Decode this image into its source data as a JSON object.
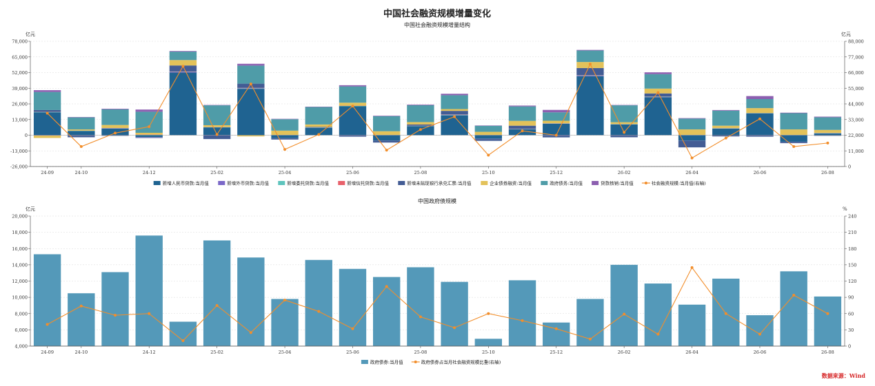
{
  "page": {
    "title": "中国社会融资规模增量变化",
    "source": "数据来源：Wind"
  },
  "chart_data": [
    {
      "type": "bar",
      "stacked": true,
      "title": "中国社会融资规模增量结构",
      "y_left_unit": "亿元",
      "y_right_unit": "亿元",
      "ylim_left": [
        -26000,
        78000
      ],
      "ylim_right": [
        0,
        88000
      ],
      "left_ticks": [
        "-26,000",
        "-13,000",
        "0",
        "13,000",
        "26,000",
        "39,000",
        "52,000",
        "65,000",
        "78,000"
      ],
      "right_ticks": [
        "0",
        "11,000",
        "22,000",
        "33,000",
        "44,000",
        "55,000",
        "66,000",
        "77,000",
        "88,000"
      ],
      "left_tick_values": [
        -26000,
        -13000,
        0,
        13000,
        26000,
        39000,
        52000,
        65000,
        78000
      ],
      "right_tick_values": [
        0,
        11000,
        22000,
        33000,
        44000,
        55000,
        66000,
        77000,
        88000
      ],
      "grid": true,
      "legend_position": "bottom",
      "categories": [
        "24-09",
        "24-10",
        "24-11",
        "24-12",
        "25-01",
        "25-02",
        "25-03",
        "25-04",
        "25-05",
        "25-06",
        "25-07",
        "25-08",
        "25-09",
        "25-10",
        "25-11",
        "25-12",
        "26-01",
        "26-02",
        "26-03",
        "26-04",
        "26-05",
        "26-06",
        "26-07",
        "26-08"
      ],
      "x_tick_labels": [
        "24-09",
        "24-10",
        "",
        "24-12",
        "",
        "25-02",
        "",
        "25-04",
        "",
        "25-06",
        "",
        "25-08",
        "",
        "25-10",
        "",
        "25-12",
        "",
        "26-02",
        "",
        "26-04",
        "",
        "26-06",
        "",
        "26-08"
      ],
      "series": [
        {
          "name": "新增人民币贷款:当月值",
          "color": "#1f6391",
          "values": [
            19000,
            3500,
            5500,
            -1500,
            52000,
            6500,
            38500,
            -2500,
            6000,
            24000,
            -4500,
            7500,
            16500,
            -3000,
            5000,
            9500,
            49000,
            9000,
            31500,
            -4500,
            5500,
            18000,
            -5500,
            1500
          ]
        },
        {
          "name": "新增外币贷款:当月值",
          "color": "#7b68c8",
          "values": [
            -300,
            -200,
            200,
            -300,
            500,
            -200,
            300,
            -100,
            100,
            -200,
            -100,
            100,
            200,
            -200,
            100,
            -300,
            400,
            -200,
            200,
            -100,
            100,
            -200,
            -100,
            100
          ]
        },
        {
          "name": "新增委托贷款:当月值",
          "color": "#5ec4bd",
          "values": [
            300,
            200,
            200,
            300,
            200,
            200,
            300,
            200,
            200,
            300,
            200,
            200,
            300,
            200,
            200,
            300,
            200,
            200,
            300,
            200,
            200,
            300,
            200,
            200
          ]
        },
        {
          "name": "新增信托贷款:当月值",
          "color": "#e8616b",
          "values": [
            100,
            100,
            100,
            200,
            200,
            100,
            200,
            100,
            100,
            200,
            100,
            100,
            200,
            100,
            100,
            200,
            200,
            100,
            200,
            100,
            100,
            200,
            100,
            100
          ]
        },
        {
          "name": "新增未贴现银行承兑汇票:当月值",
          "color": "#435c94",
          "values": [
            1500,
            -1500,
            -500,
            -500,
            5000,
            -3000,
            3500,
            -1000,
            500,
            -1000,
            -1500,
            1000,
            3000,
            -1500,
            2500,
            -1500,
            6000,
            -1500,
            2500,
            -5500,
            -1000,
            -1000,
            -1000,
            -500
          ]
        },
        {
          "name": "企业债券融资:当月值",
          "color": "#e3c25a",
          "values": [
            -2000,
            1000,
            2500,
            1500,
            4500,
            1500,
            -1000,
            3500,
            2000,
            2500,
            3000,
            2000,
            1500,
            2500,
            4000,
            2000,
            5000,
            1500,
            4000,
            4500,
            2000,
            4000,
            4500,
            2500
          ]
        },
        {
          "name": "政府债务:当月值",
          "color": "#4f9ca8",
          "values": [
            15000,
            10000,
            13000,
            17500,
            7000,
            16500,
            15000,
            9500,
            14500,
            13500,
            12500,
            14000,
            11500,
            5000,
            12000,
            7000,
            9500,
            14000,
            12000,
            9000,
            12500,
            7500,
            13500,
            10500
          ]
        },
        {
          "name": "贷款核销:当月值",
          "color": "#8c5fb0",
          "values": [
            1500,
            300,
            500,
            1800,
            500,
            300,
            1500,
            300,
            300,
            1000,
            400,
            500,
            1200,
            300,
            700,
            2000,
            500,
            300,
            1500,
            400,
            500,
            2500,
            400,
            500
          ]
        }
      ],
      "line": {
        "name": "社会融资规模:当月值(右轴)",
        "color": "#f28e2b",
        "axis": "right",
        "values": [
          37500,
          14000,
          23500,
          28000,
          70500,
          22500,
          58000,
          12000,
          22500,
          42500,
          11500,
          26000,
          35000,
          8000,
          25000,
          22000,
          72000,
          24000,
          52000,
          6000,
          20000,
          33500,
          14000,
          16500
        ]
      }
    },
    {
      "type": "bar",
      "title": "中国政府债规模",
      "y_left_unit": "亿元",
      "y_right_unit": "%",
      "ylim_left": [
        4000,
        20000
      ],
      "ylim_right": [
        0,
        240
      ],
      "left_ticks": [
        "4,000",
        "6,000",
        "8,000",
        "10,000",
        "12,000",
        "14,000",
        "16,000",
        "18,000",
        "20,000"
      ],
      "right_ticks": [
        "0",
        "30",
        "60",
        "90",
        "120",
        "150",
        "180",
        "210",
        "240"
      ],
      "left_tick_values": [
        4000,
        6000,
        8000,
        10000,
        12000,
        14000,
        16000,
        18000,
        20000
      ],
      "right_tick_values": [
        0,
        30,
        60,
        90,
        120,
        150,
        180,
        210,
        240
      ],
      "grid": true,
      "legend_position": "bottom",
      "categories": [
        "24-09",
        "24-10",
        "24-11",
        "24-12",
        "25-01",
        "25-02",
        "25-03",
        "25-04",
        "25-05",
        "25-06",
        "25-07",
        "25-08",
        "25-09",
        "25-10",
        "25-11",
        "25-12",
        "26-01",
        "26-02",
        "26-03",
        "26-04",
        "26-05",
        "26-06",
        "26-07",
        "26-08"
      ],
      "x_tick_labels": [
        "24-09",
        "24-10",
        "",
        "24-12",
        "",
        "25-02",
        "",
        "25-04",
        "",
        "25-06",
        "",
        "25-08",
        "",
        "25-10",
        "",
        "25-12",
        "",
        "26-02",
        "",
        "26-04",
        "",
        "26-06",
        "",
        "26-08"
      ],
      "series": [
        {
          "name": "政府债券:当月值",
          "color": "#5499b9",
          "values": [
            15300,
            10500,
            13100,
            17600,
            7000,
            17000,
            14900,
            9800,
            14600,
            13500,
            12500,
            13700,
            11900,
            4900,
            12100,
            6900,
            9800,
            14000,
            11700,
            9100,
            12300,
            7800,
            13200,
            10100
          ]
        }
      ],
      "line": {
        "name": "政府债券占当月社会融资规模比重(右轴)",
        "color": "#f28e2b",
        "axis": "right",
        "values": [
          40,
          74,
          57,
          60,
          10,
          75,
          25,
          85,
          64,
          32,
          110,
          54,
          34,
          60,
          47,
          32,
          13,
          59,
          22,
          145,
          60,
          22,
          94,
          60
        ]
      }
    }
  ]
}
